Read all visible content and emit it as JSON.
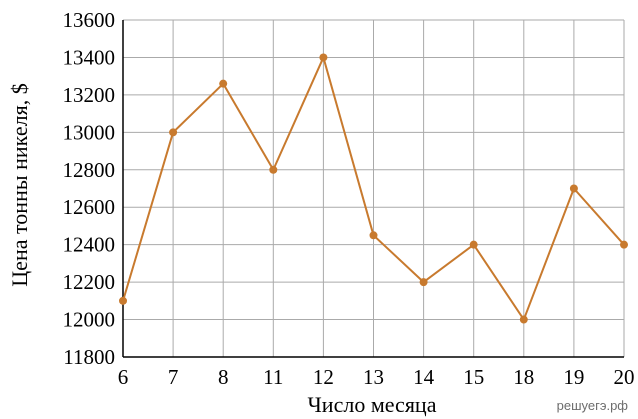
{
  "chart_data": {
    "type": "line",
    "title": "",
    "xlabel": "Число месяца",
    "ylabel": "Цена тонны никеля, $",
    "categories": [
      "6",
      "7",
      "8",
      "11",
      "12",
      "13",
      "14",
      "15",
      "18",
      "19",
      "20"
    ],
    "values": [
      12100,
      13000,
      13260,
      12800,
      13400,
      12450,
      12200,
      12400,
      12000,
      12700,
      12400
    ],
    "ylim": [
      11800,
      13600
    ],
    "yticks": [
      11800,
      12000,
      12200,
      12400,
      12600,
      12800,
      13000,
      13200,
      13400,
      13600
    ],
    "grid": true,
    "colors": {
      "line": "#c87a2e",
      "grid": "#aaaaaa",
      "axis": "#000000"
    }
  },
  "watermark": "решуегэ.рф"
}
